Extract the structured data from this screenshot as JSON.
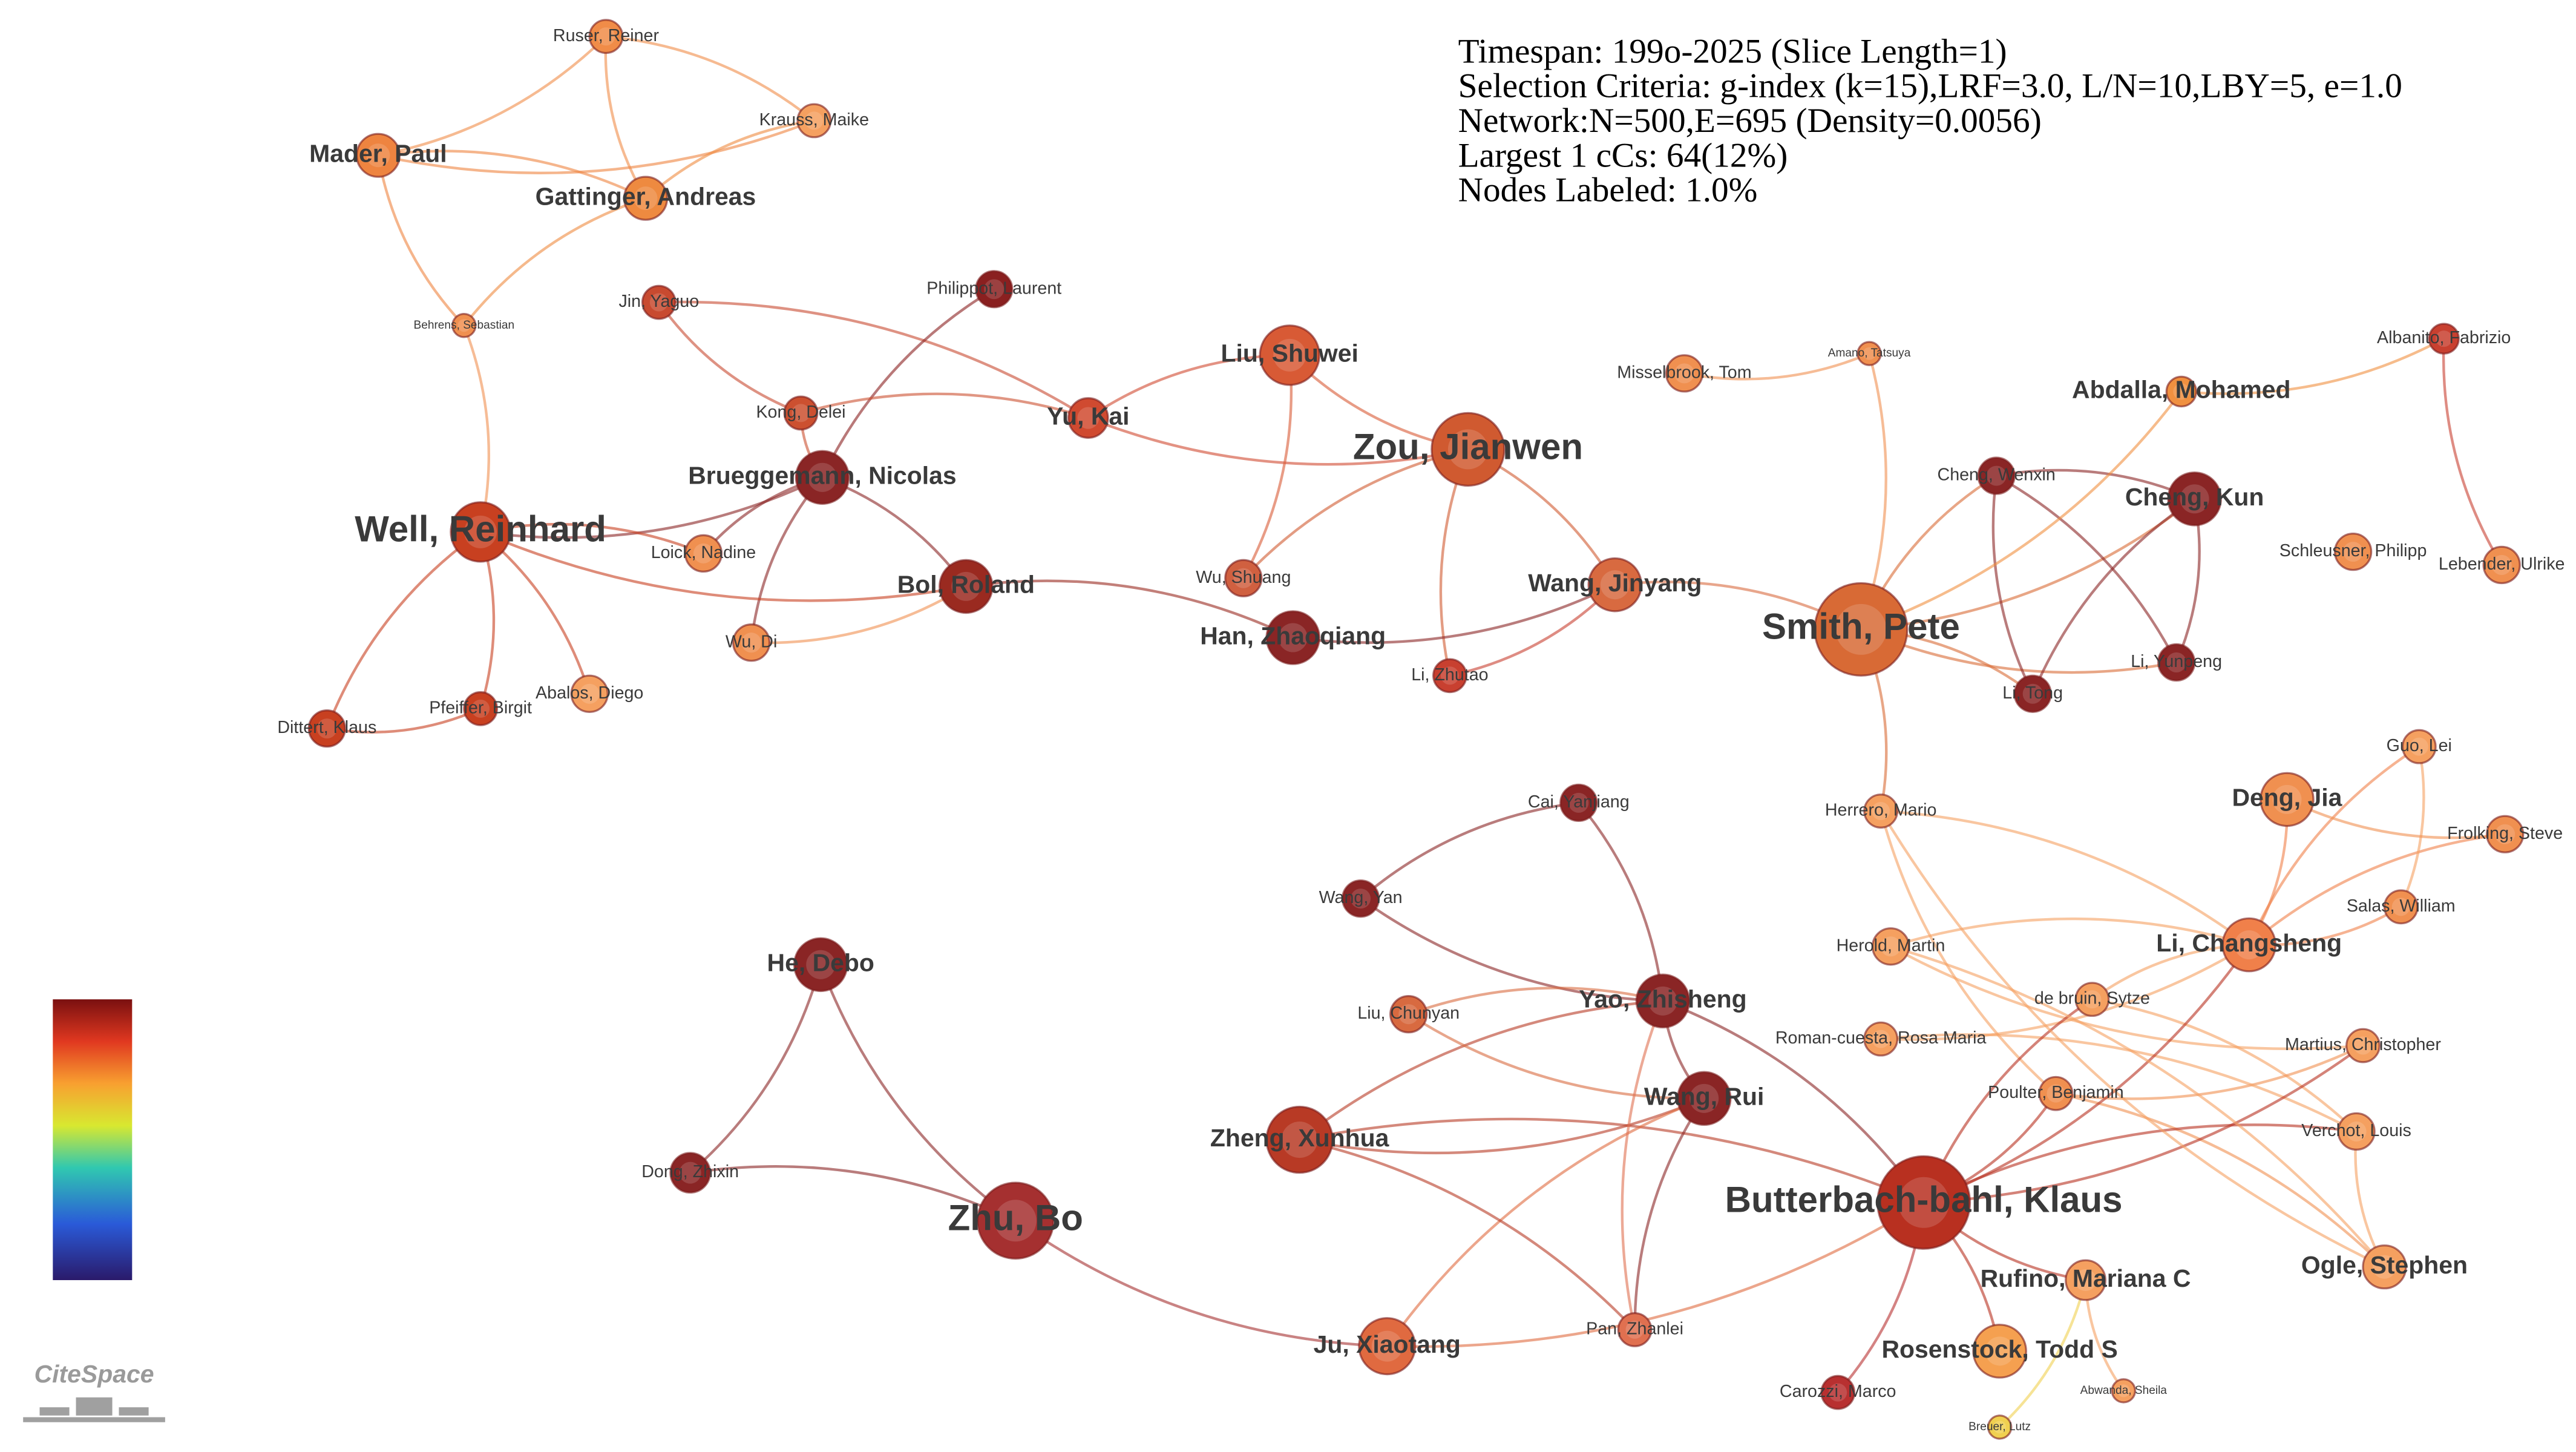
{
  "header": {
    "lines": [
      "Timespan: 199o-2025 (Slice Length=1)",
      "Selection Criteria: g-index (k=15),LRF=3.0, L/N=10,LBY=5, e=1.0",
      "Network:N=500,E=695 (Density=0.0056)",
      "Largest 1 cCs: 64(12%)",
      "Nodes Labeled: 1.0%"
    ]
  },
  "logo": "CiteSpace",
  "nodes": [
    {
      "label": "Ruser, Reiner",
      "color": "#f08c48"
    },
    {
      "label": "Krauss, Maike",
      "color": "#f5a060"
    },
    {
      "label": "Mader, Paul",
      "color": "#ee8440"
    },
    {
      "label": "Gattinger, Andreas",
      "color": "#ee8a40"
    },
    {
      "label": "Behrens, Sebastian",
      "color": "#f09050"
    },
    {
      "label": "Jin, Yaguo",
      "color": "#c84a30"
    },
    {
      "label": "Philippot, Laurent",
      "color": "#8a2020"
    },
    {
      "label": "Kong, Delei",
      "color": "#cc5030"
    },
    {
      "label": "Yu, Kai",
      "color": "#d04a30"
    },
    {
      "label": "Liu, Shuwei",
      "color": "#d85a35"
    },
    {
      "label": "Zou, Jianwen",
      "color": "#d05a30"
    },
    {
      "label": "Brueggemann, Nicolas",
      "color": "#8a2525"
    },
    {
      "label": "Well, Reinhard",
      "color": "#c84020"
    },
    {
      "label": "Loick, Nadine",
      "color": "#f09050"
    },
    {
      "label": "Bol, Roland",
      "color": "#9a2a20"
    },
    {
      "label": "Wu, Shuang",
      "color": "#d06040"
    },
    {
      "label": "Han, Zhaoqiang",
      "color": "#8a2525"
    },
    {
      "label": "Wang, Jinyang",
      "color": "#d86a40"
    },
    {
      "label": "Wu, Di",
      "color": "#f09050"
    },
    {
      "label": "Li, Zhutao",
      "color": "#c84030"
    },
    {
      "label": "Abalos, Diego",
      "color": "#f5a060"
    },
    {
      "label": "Pfeiffer, Birgit",
      "color": "#c84020"
    },
    {
      "label": "Dittert, Klaus",
      "color": "#c84020"
    },
    {
      "label": "Misselbrook, Tom",
      "color": "#f09050"
    },
    {
      "label": "Amano, Tatsuya",
      "color": "#f09050"
    },
    {
      "label": "Smith, Pete",
      "color": "#d86a35"
    },
    {
      "label": "Abdalla, Mohamed",
      "color": "#f09040"
    },
    {
      "label": "Albanito, Fabrizio",
      "color": "#c84030"
    },
    {
      "label": "Cheng, Wenxin",
      "color": "#8a2525"
    },
    {
      "label": "Cheng, Kun",
      "color": "#8a2525"
    },
    {
      "label": "Schleusner, Philipp",
      "color": "#f09050"
    },
    {
      "label": "Lebender, Ulrike",
      "color": "#f09050"
    },
    {
      "label": "Li, Yunpeng",
      "color": "#8a2525"
    },
    {
      "label": "Li, Tong",
      "color": "#8a2525"
    },
    {
      "label": "Cai, Yanjiang",
      "color": "#8a2525"
    },
    {
      "label": "Herrero, Mario",
      "color": "#f5a060"
    },
    {
      "label": "Guo, Lei",
      "color": "#f5a060"
    },
    {
      "label": "Deng, Jia",
      "color": "#f09050"
    },
    {
      "label": "Frolking, Steve",
      "color": "#f09050"
    },
    {
      "label": "Wang, Yan",
      "color": "#8a2525"
    },
    {
      "label": "Salas, William",
      "color": "#f09050"
    },
    {
      "label": "He, Debo",
      "color": "#8a2525"
    },
    {
      "label": "Li, Changsheng",
      "color": "#f0804a"
    },
    {
      "label": "Herold, Martin",
      "color": "#f5a060"
    },
    {
      "label": "de bruin, Sytze",
      "color": "#f5a060"
    },
    {
      "label": "Liu, Chunyan",
      "color": "#d86a40"
    },
    {
      "label": "Yao, Zhisheng",
      "color": "#8a2525"
    },
    {
      "label": "Roman-cuesta, Rosa Maria",
      "color": "#f5a060"
    },
    {
      "label": "Martius, Christopher",
      "color": "#f5a060"
    },
    {
      "label": "Wang, Rui",
      "color": "#8a2525"
    },
    {
      "label": "Poulter, Benjamin",
      "color": "#f09050"
    },
    {
      "label": "Zheng, Xunhua",
      "color": "#b83a25"
    },
    {
      "label": "Verchot, Louis",
      "color": "#f5a060"
    },
    {
      "label": "Dong, Zhixin",
      "color": "#8a2525"
    },
    {
      "label": "Butterbach-bahl, Klaus",
      "color": "#b83020"
    },
    {
      "label": "Zhu, Bo",
      "color": "#a53030"
    },
    {
      "label": "Ogle, Stephen",
      "color": "#f5a060"
    },
    {
      "label": "Rufino, Mariana C",
      "color": "#f5a060"
    },
    {
      "label": "Rosenstock, Todd S",
      "color": "#f5a050"
    },
    {
      "label": "Ju, Xiaotang",
      "color": "#e06a40"
    },
    {
      "label": "Pan, Zhanlei",
      "color": "#e07050"
    },
    {
      "label": "Carozzi, Marco",
      "color": "#b83030"
    },
    {
      "label": "Abwanda, Sheila",
      "color": "#f5a060"
    },
    {
      "label": "Breuer, Lutz",
      "color": "#f0d050"
    }
  ]
}
